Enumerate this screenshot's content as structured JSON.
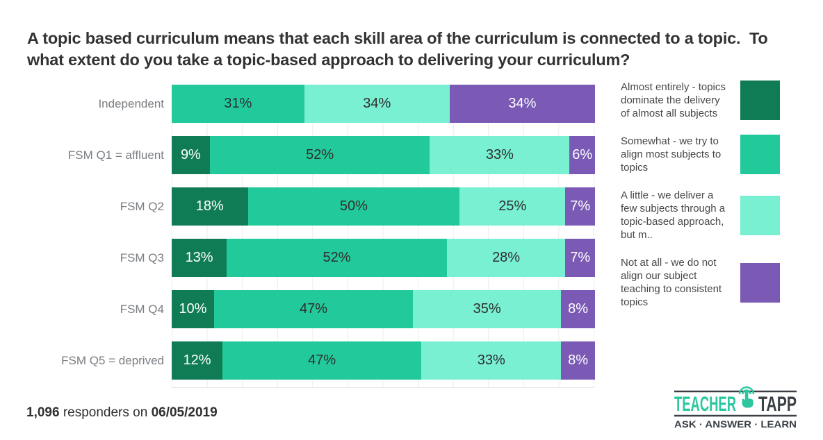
{
  "title": "A topic based curriculum means that each skill area of the curriculum is connected to a topic.  To what extent do you take a topic-based approach to delivering your curriculum?",
  "chart_data": {
    "type": "bar",
    "orientation": "horizontal",
    "stacked": true,
    "categories": [
      "Independent",
      "FSM Q1 = affluent",
      "FSM Q2",
      "FSM Q3",
      "FSM Q4",
      "FSM Q5 = deprived"
    ],
    "series": [
      {
        "name": "Almost entirely - topics dominate the delivery of almost all subjects",
        "color": "#0f7c55",
        "label_color": "#ffffff",
        "values": [
          0,
          9,
          18,
          13,
          10,
          12
        ]
      },
      {
        "name": "Somewhat - we try to align most subjects to topics",
        "color": "#22ca9b",
        "label_color": "#2e2e2e",
        "values": [
          31,
          52,
          50,
          52,
          47,
          47
        ]
      },
      {
        "name": "A little - we deliver a few subjects through a topic-based approach, but m..",
        "color": "#79f0d2",
        "label_color": "#2e2e2e",
        "values": [
          34,
          33,
          25,
          28,
          35,
          33
        ]
      },
      {
        "name": "Not at all - we do not align our subject teaching to consistent topics",
        "color": "#7a5ab5",
        "label_color": "#ffffff",
        "values": [
          34,
          6,
          7,
          7,
          8,
          8
        ]
      }
    ],
    "value_suffix": "%",
    "xlim": [
      0,
      100
    ],
    "grid": "vertical",
    "legend_position": "right"
  },
  "footer": {
    "responders_count": "1,096",
    "label": "responders on",
    "date": "06/05/2019"
  },
  "logo": {
    "word1": "TEACHER",
    "word2": "TAPP",
    "tagline": "ASK · ANSWER · LEARN",
    "teal": "#2bc79e",
    "dark": "#3a4046"
  }
}
